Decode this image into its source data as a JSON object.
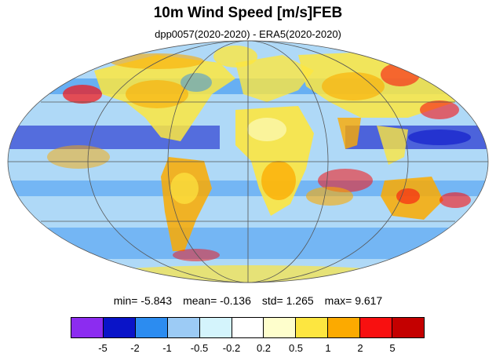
{
  "title": "10m Wind Speed [m/s]FEB",
  "subtitle": "dpp0057(2020-2020) - ERA5(2020-2020)",
  "stats": {
    "min_label": "min=",
    "min_value": "-5.843",
    "mean_label": "mean=",
    "mean_value": "-0.136",
    "std_label": "std=",
    "std_value": "1.265",
    "max_label": "max=",
    "max_value": "9.617"
  },
  "colorbar": {
    "colors": [
      "#8c2cf0",
      "#0a14c8",
      "#2c8cf0",
      "#9ccbf5",
      "#d4f4fc",
      "#ffffff",
      "#fefecc",
      "#fde640",
      "#fcaa00",
      "#f81010",
      "#c40000"
    ],
    "tick_labels": [
      "-5",
      "-2",
      "-1",
      "-0.5",
      "-0.2",
      "0.2",
      "0.5",
      "1",
      "2",
      "5"
    ]
  },
  "map": {
    "projection": "mollweide",
    "ocean_base_color": "#9ccbf5",
    "land_base_color": "#fde640"
  }
}
